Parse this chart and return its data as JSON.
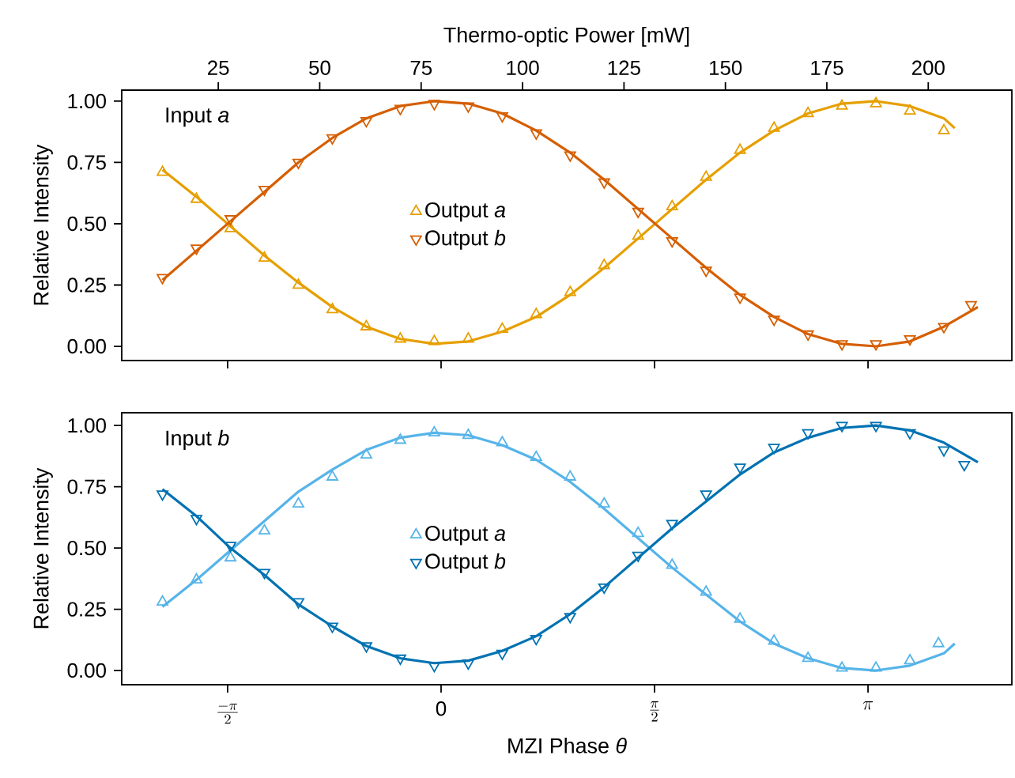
{
  "chart_data": [
    {
      "type": "scatter",
      "annotations": [
        "Input *a*"
      ],
      "ylabel": "Relative Intensity",
      "x2label": "Thermo-optic Power [mW]",
      "xlim": [
        -2.35,
        4.2
      ],
      "ylim": [
        -0.058,
        1.045
      ],
      "x2lim": [
        1.2,
        220.6
      ],
      "xticks": [
        -1.5708,
        0,
        1.5708,
        3.1416
      ],
      "tick_labels": "y",
      "yticks": [
        {
          "value": 0,
          "label": "0.00"
        },
        {
          "value": 0.25,
          "label": "0.25"
        },
        {
          "value": 0.5,
          "label": "0.50"
        },
        {
          "value": 0.75,
          "label": "0.75"
        },
        {
          "value": 1,
          "label": "1.00"
        }
      ],
      "x2ticks": [
        25,
        50,
        75,
        100,
        125,
        150,
        175,
        200
      ],
      "legend": "center",
      "series": [
        {
          "type": "line",
          "color": "#e69f00",
          "x": [
            -2.05,
            -1.8,
            -1.55,
            -1.3,
            -1.05,
            -0.8,
            -0.55,
            -0.3,
            -0.05,
            0.2,
            0.45,
            0.7,
            0.95,
            1.2,
            1.45,
            1.7,
            1.95,
            2.2,
            2.45,
            2.7,
            2.95,
            3.2,
            3.45,
            3.7,
            3.78
          ],
          "values": [
            0.72,
            0.61,
            0.49,
            0.37,
            0.26,
            0.16,
            0.08,
            0.03,
            0.01,
            0.02,
            0.06,
            0.12,
            0.21,
            0.32,
            0.44,
            0.56,
            0.68,
            0.79,
            0.88,
            0.95,
            0.99,
            1.0,
            0.98,
            0.93,
            0.89
          ]
        },
        {
          "type": "line",
          "color": "#d55e00",
          "x": [
            -2.05,
            -1.8,
            -1.55,
            -1.3,
            -1.05,
            -0.8,
            -0.55,
            -0.3,
            -0.05,
            0.2,
            0.45,
            0.7,
            0.95,
            1.2,
            1.45,
            1.7,
            1.95,
            2.2,
            2.45,
            2.7,
            2.95,
            3.2,
            3.45,
            3.7,
            3.95
          ],
          "values": [
            0.27,
            0.39,
            0.51,
            0.63,
            0.75,
            0.85,
            0.93,
            0.98,
            1.0,
            0.99,
            0.95,
            0.88,
            0.79,
            0.68,
            0.56,
            0.44,
            0.32,
            0.21,
            0.12,
            0.05,
            0.01,
            0.0,
            0.02,
            0.08,
            0.16
          ]
        },
        {
          "type": "scatter",
          "name": "Output *a*",
          "marker": "triangle",
          "color": "#e69f00",
          "x": [
            -2.05,
            -1.8,
            -1.55,
            -1.3,
            -1.05,
            -0.8,
            -0.55,
            -0.3,
            -0.05,
            0.2,
            0.45,
            0.7,
            0.95,
            1.2,
            1.45,
            1.7,
            1.95,
            2.2,
            2.45,
            2.7,
            2.95,
            3.2,
            3.45,
            3.7
          ],
          "values": [
            0.71,
            0.6,
            0.48,
            0.36,
            0.25,
            0.15,
            0.08,
            0.03,
            0.02,
            0.03,
            0.07,
            0.13,
            0.22,
            0.33,
            0.45,
            0.57,
            0.69,
            0.8,
            0.89,
            0.95,
            0.98,
            0.99,
            0.96,
            0.88
          ]
        },
        {
          "type": "scatter",
          "name": "Output *b*",
          "marker": "triangle-down",
          "color": "#d55e00",
          "x": [
            -2.05,
            -1.8,
            -1.55,
            -1.3,
            -1.05,
            -0.8,
            -0.55,
            -0.3,
            -0.05,
            0.2,
            0.45,
            0.7,
            0.95,
            1.2,
            1.45,
            1.7,
            1.95,
            2.2,
            2.45,
            2.7,
            2.95,
            3.2,
            3.45,
            3.7,
            3.9
          ],
          "values": [
            0.28,
            0.4,
            0.52,
            0.64,
            0.75,
            0.85,
            0.92,
            0.97,
            0.99,
            0.98,
            0.94,
            0.87,
            0.78,
            0.67,
            0.55,
            0.43,
            0.31,
            0.2,
            0.11,
            0.05,
            0.01,
            0.01,
            0.03,
            0.08,
            0.17
          ]
        }
      ]
    },
    {
      "type": "scatter",
      "annotations": [
        "Input *b*"
      ],
      "ylabel": "Relative Intensity",
      "xlabel": "MZI Phase *θ*",
      "xlim": [
        -2.35,
        4.2
      ],
      "ylim": [
        -0.058,
        1.052
      ],
      "xticks": [
        {
          "value": -1.5708,
          "label": "\\frac{-\\pi}{2}"
        },
        0,
        {
          "value": 1.5708,
          "label": "\\frac{\\pi}{2}"
        },
        {
          "value": 3.1416,
          "label": "\\pi"
        }
      ],
      "yticks": [
        {
          "value": 0,
          "label": "0.00"
        },
        {
          "value": 0.25,
          "label": "0.25"
        },
        {
          "value": 0.5,
          "label": "0.50"
        },
        {
          "value": 0.75,
          "label": "0.75"
        },
        {
          "value": 1,
          "label": "1.00"
        }
      ],
      "legend": "center",
      "series": [
        {
          "type": "line",
          "color": "#56b4e9",
          "x": [
            -2.05,
            -1.8,
            -1.55,
            -1.3,
            -1.05,
            -0.8,
            -0.55,
            -0.3,
            -0.05,
            0.2,
            0.45,
            0.7,
            0.95,
            1.2,
            1.45,
            1.7,
            1.95,
            2.2,
            2.45,
            2.7,
            2.95,
            3.2,
            3.45,
            3.7,
            3.78
          ],
          "values": [
            0.26,
            0.37,
            0.49,
            0.61,
            0.73,
            0.82,
            0.9,
            0.95,
            0.97,
            0.96,
            0.92,
            0.86,
            0.77,
            0.66,
            0.54,
            0.42,
            0.31,
            0.2,
            0.11,
            0.05,
            0.01,
            0.0,
            0.02,
            0.07,
            0.11
          ]
        },
        {
          "type": "line",
          "color": "#0072b2",
          "x": [
            -2.05,
            -1.8,
            -1.55,
            -1.3,
            -1.05,
            -0.8,
            -0.55,
            -0.3,
            -0.05,
            0.2,
            0.45,
            0.7,
            0.95,
            1.2,
            1.45,
            1.7,
            1.95,
            2.2,
            2.45,
            2.7,
            2.95,
            3.2,
            3.45,
            3.7,
            3.95
          ],
          "values": [
            0.74,
            0.63,
            0.5,
            0.39,
            0.27,
            0.18,
            0.1,
            0.05,
            0.03,
            0.04,
            0.08,
            0.14,
            0.23,
            0.34,
            0.46,
            0.58,
            0.69,
            0.8,
            0.89,
            0.95,
            0.99,
            1.0,
            0.98,
            0.93,
            0.85
          ]
        },
        {
          "type": "scatter",
          "name": "Output *a*",
          "marker": "triangle",
          "color": "#56b4e9",
          "x": [
            -2.05,
            -1.8,
            -1.55,
            -1.3,
            -1.05,
            -0.8,
            -0.55,
            -0.3,
            -0.05,
            0.2,
            0.45,
            0.7,
            0.95,
            1.2,
            1.45,
            1.7,
            1.95,
            2.2,
            2.45,
            2.7,
            2.95,
            3.2,
            3.45,
            3.66
          ],
          "values": [
            0.28,
            0.37,
            0.46,
            0.57,
            0.68,
            0.79,
            0.88,
            0.94,
            0.97,
            0.96,
            0.93,
            0.87,
            0.79,
            0.68,
            0.56,
            0.43,
            0.32,
            0.21,
            0.12,
            0.05,
            0.01,
            0.01,
            0.04,
            0.11
          ]
        },
        {
          "type": "scatter",
          "name": "Output *b*",
          "marker": "triangle-down",
          "color": "#0072b2",
          "x": [
            -2.05,
            -1.8,
            -1.55,
            -1.3,
            -1.05,
            -0.8,
            -0.55,
            -0.3,
            -0.05,
            0.2,
            0.45,
            0.7,
            0.95,
            1.2,
            1.45,
            1.7,
            1.95,
            2.2,
            2.45,
            2.7,
            2.95,
            3.2,
            3.45,
            3.7,
            3.85
          ],
          "values": [
            0.72,
            0.62,
            0.51,
            0.4,
            0.28,
            0.18,
            0.1,
            0.05,
            0.02,
            0.03,
            0.07,
            0.13,
            0.22,
            0.34,
            0.47,
            0.6,
            0.72,
            0.83,
            0.91,
            0.97,
            1.0,
            1.0,
            0.97,
            0.9,
            0.84
          ]
        }
      ]
    }
  ]
}
